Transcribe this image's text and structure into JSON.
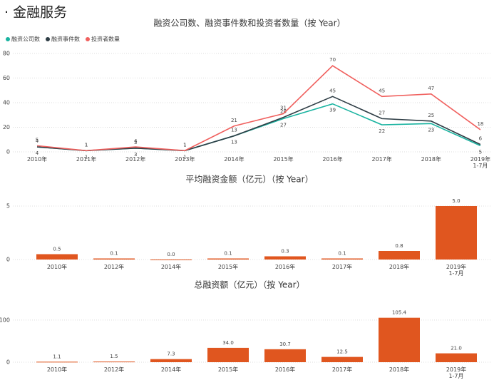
{
  "header": {
    "title": "· 金融服务"
  },
  "chart_data": [
    {
      "type": "line",
      "title": "融资公司数、融资事件数和投资者数量（按 Year）",
      "categories": [
        "2010年",
        "2011年",
        "2012年",
        "2013年",
        "2014年",
        "2015年",
        "2016年",
        "2017年",
        "2018年",
        "2019年 1-7月"
      ],
      "series": [
        {
          "name": "融资公司数",
          "color": "#19b3a0",
          "values": [
            4,
            1,
            3,
            1,
            13,
            27,
            39,
            22,
            23,
            5
          ]
        },
        {
          "name": "融资事件数",
          "color": "#2e3d45",
          "values": [
            4,
            1,
            3,
            1,
            13,
            28,
            45,
            27,
            25,
            6
          ]
        },
        {
          "name": "投资者数量",
          "color": "#f0605e",
          "values": [
            5,
            1,
            4,
            1,
            21,
            31,
            70,
            45,
            47,
            18
          ]
        }
      ],
      "ylim": [
        0,
        84
      ],
      "yticks": [
        0,
        20,
        40,
        60,
        80
      ],
      "grid": true,
      "legend": "top-left"
    },
    {
      "type": "bar",
      "title": "平均融资金额（亿元）（按 Year）",
      "categories": [
        "2010年",
        "2012年",
        "2014年",
        "2015年",
        "2016年",
        "2017年",
        "2018年",
        "2019年 1-7月"
      ],
      "values": [
        0.5,
        0.1,
        0.0,
        0.1,
        0.3,
        0.1,
        0.8,
        5.0
      ],
      "value_labels": [
        "0.5",
        "0.1",
        "0.0",
        "0.1",
        "0.3",
        "0.1",
        "0.8",
        "5.0"
      ],
      "color": "#e0561f",
      "ylim": [
        0,
        5.6
      ],
      "yticks": [
        0,
        5
      ],
      "grid": true
    },
    {
      "type": "bar",
      "title": "总融资额（亿元）（按 Year）",
      "categories": [
        "2010年",
        "2012年",
        "2014年",
        "2015年",
        "2016年",
        "2017年",
        "2018年",
        "2019年 1-7月"
      ],
      "values": [
        1.1,
        1.5,
        7.3,
        34.0,
        30.7,
        12.5,
        105.4,
        21.0
      ],
      "value_labels": [
        "1.1",
        "1.5",
        "7.3",
        "34.0",
        "30.7",
        "12.5",
        "105.4",
        "21.0"
      ],
      "color": "#e0561f",
      "ylim": [
        0,
        115
      ],
      "yticks": [
        0,
        100
      ],
      "grid": true
    }
  ]
}
